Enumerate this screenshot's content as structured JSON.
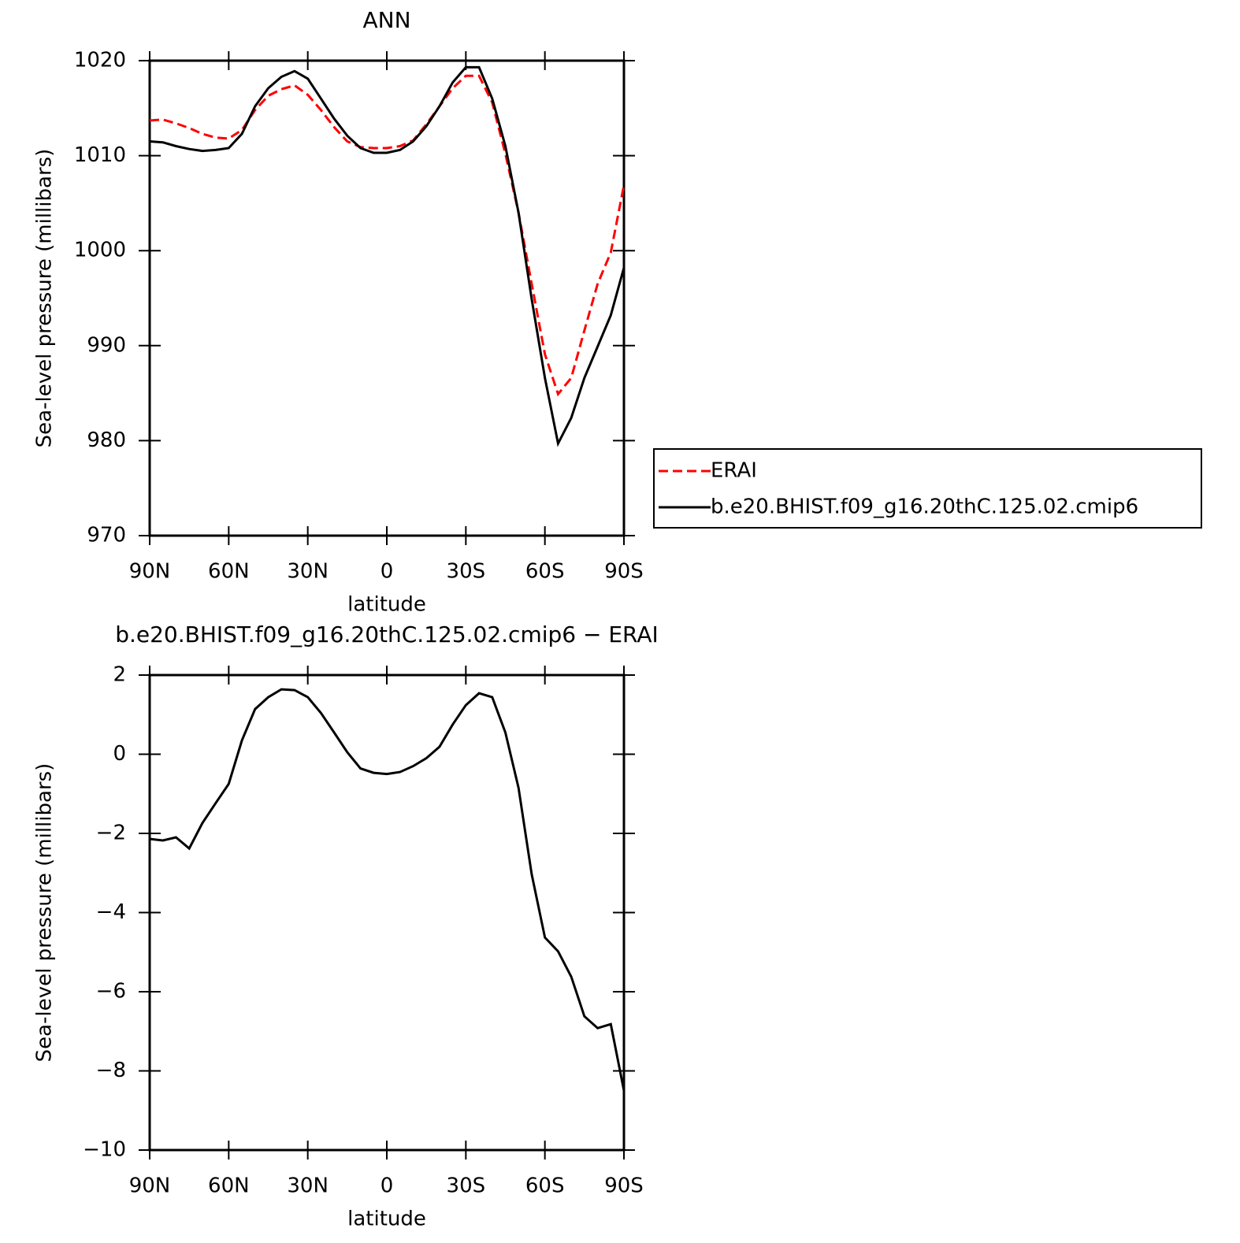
{
  "chart_data": [
    {
      "type": "line",
      "title": "ANN",
      "x_label": "latitude",
      "y_label": "Sea-level pressure (millibars)",
      "xlim": [
        90,
        -90
      ],
      "xticks": [
        {
          "value": 90,
          "label": "90N"
        },
        {
          "value": 60,
          "label": "60N"
        },
        {
          "value": 30,
          "label": "30N"
        },
        0,
        {
          "value": -30,
          "label": "30S"
        },
        {
          "value": -60,
          "label": "60S"
        },
        {
          "value": -90,
          "label": "90S"
        }
      ],
      "ylim": [
        970,
        1020
      ],
      "yticks": [
        970,
        980,
        990,
        1000,
        1010,
        1020
      ],
      "legend": "right",
      "x": [
        90,
        85,
        80,
        75,
        70,
        65,
        60,
        55,
        50,
        45,
        40,
        35,
        30,
        25,
        20,
        15,
        10,
        5,
        0,
        -5,
        -10,
        -15,
        -20,
        -25,
        -30,
        -35,
        -40,
        -45,
        -50,
        -55,
        -60,
        -65,
        -70,
        -75,
        -80,
        -85,
        -90
      ],
      "series": [
        {
          "name": "ERAI",
          "color": "#ff0000",
          "dashed": true,
          "values": [
            1013.7,
            1013.8,
            1013.4,
            1012.9,
            1012.3,
            1011.9,
            1011.8,
            1012.7,
            1014.8,
            1016.3,
            1017.0,
            1017.4,
            1016.4,
            1014.8,
            1013.0,
            1011.5,
            1010.9,
            1010.8,
            1010.8,
            1011.0,
            1011.6,
            1013.3,
            1015.2,
            1017.1,
            1018.4,
            1018.4,
            1015.6,
            1010.2,
            1004.0,
            996.5,
            989.1,
            984.9,
            986.6,
            991.6,
            996.5,
            999.8,
            1006.9
          ]
        },
        {
          "name": "b.e20.BHIST.f09_g16.20thC.125.02.cmip6",
          "color": "#000000",
          "dashed": false,
          "values": [
            1011.5,
            1011.4,
            1011.0,
            1010.7,
            1010.5,
            1010.6,
            1010.8,
            1012.3,
            1015.2,
            1017.1,
            1018.3,
            1018.9,
            1018.1,
            1016.0,
            1013.9,
            1012.1,
            1010.8,
            1010.3,
            1010.3,
            1010.6,
            1011.5,
            1013.1,
            1015.2,
            1017.7,
            1019.3,
            1019.3,
            1016.0,
            1011.0,
            1004.0,
            994.9,
            986.6,
            979.7,
            982.4,
            986.6,
            989.9,
            993.2,
            998.2
          ]
        }
      ]
    },
    {
      "type": "line",
      "title": "b.e20.BHIST.f09_g16.20thC.125.02.cmip6 − ERAI",
      "x_label": "latitude",
      "y_label": "Sea-level pressure (millibars)",
      "xlim": [
        90,
        -90
      ],
      "xticks": [
        {
          "value": 90,
          "label": "90N"
        },
        {
          "value": 60,
          "label": "60N"
        },
        {
          "value": 30,
          "label": "30N"
        },
        0,
        {
          "value": -30,
          "label": "30S"
        },
        {
          "value": -60,
          "label": "60S"
        },
        {
          "value": -90,
          "label": "90S"
        }
      ],
      "ylim": [
        -10,
        2
      ],
      "yticks": [
        {
          "value": -10,
          "label": "−10"
        },
        {
          "value": -8,
          "label": "−8"
        },
        {
          "value": -6,
          "label": "−6"
        },
        {
          "value": -4,
          "label": "−4"
        },
        {
          "value": -2,
          "label": "−2"
        },
        0,
        2
      ],
      "x": [
        90,
        85,
        80,
        75,
        70,
        65,
        60,
        55,
        50,
        45,
        40,
        35,
        30,
        25,
        20,
        15,
        10,
        5,
        0,
        -5,
        -10,
        -15,
        -20,
        -25,
        -30,
        -35,
        -40,
        -45,
        -50,
        -55,
        -60,
        -65,
        -70,
        -75,
        -80,
        -85,
        -90
      ],
      "series": [
        {
          "color": "#000000",
          "dashed": false,
          "values": [
            -2.14,
            -2.18,
            -2.1,
            -2.38,
            -1.74,
            -1.24,
            -0.75,
            0.35,
            1.14,
            1.44,
            1.64,
            1.62,
            1.44,
            1.04,
            0.55,
            0.05,
            -0.36,
            -0.47,
            -0.5,
            -0.45,
            -0.3,
            -0.1,
            0.19,
            0.75,
            1.24,
            1.54,
            1.44,
            0.55,
            -0.85,
            -3.03,
            -4.63,
            -4.98,
            -5.62,
            -6.62,
            -6.92,
            -6.82,
            -8.5
          ]
        }
      ]
    }
  ]
}
